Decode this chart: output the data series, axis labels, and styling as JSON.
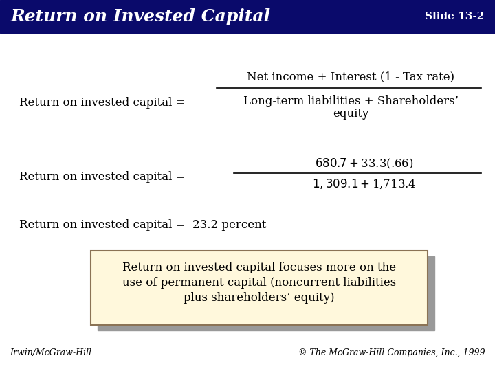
{
  "title": "Return on Invested Capital",
  "slide_num": "Slide 13-2",
  "header_bg": "#0A0A6B",
  "header_text_color": "#FFFFFF",
  "body_bg": "#FFFFFF",
  "body_text_color": "#000000",
  "footer_left": "Irwin/McGraw-Hill",
  "footer_right": "© The McGraw-Hill Companies, Inc., 1999",
  "formula_label": "Return on invested capital =",
  "formula_numerator": "Net income + Interest (1 - Tax rate)",
  "formula_denominator1": "Long-term liabilities + Shareholders’",
  "formula_denominator2": "equity",
  "example_label": "Return on invested capital =",
  "example_numerator": "$680.7 + $33.3(.66)",
  "example_denominator": "$1,309.1 + $1,713.4",
  "result_text": "Return on invested capital =  23.2 percent",
  "box_text1": "Return on invested capital focuses more on the",
  "box_text2": "use of permanent capital (noncurrent liabilities",
  "box_text3": "plus shareholders’ equity)",
  "box_bg": "#FFF8DC",
  "box_border": "#8B7355",
  "shadow_color": "#999999"
}
